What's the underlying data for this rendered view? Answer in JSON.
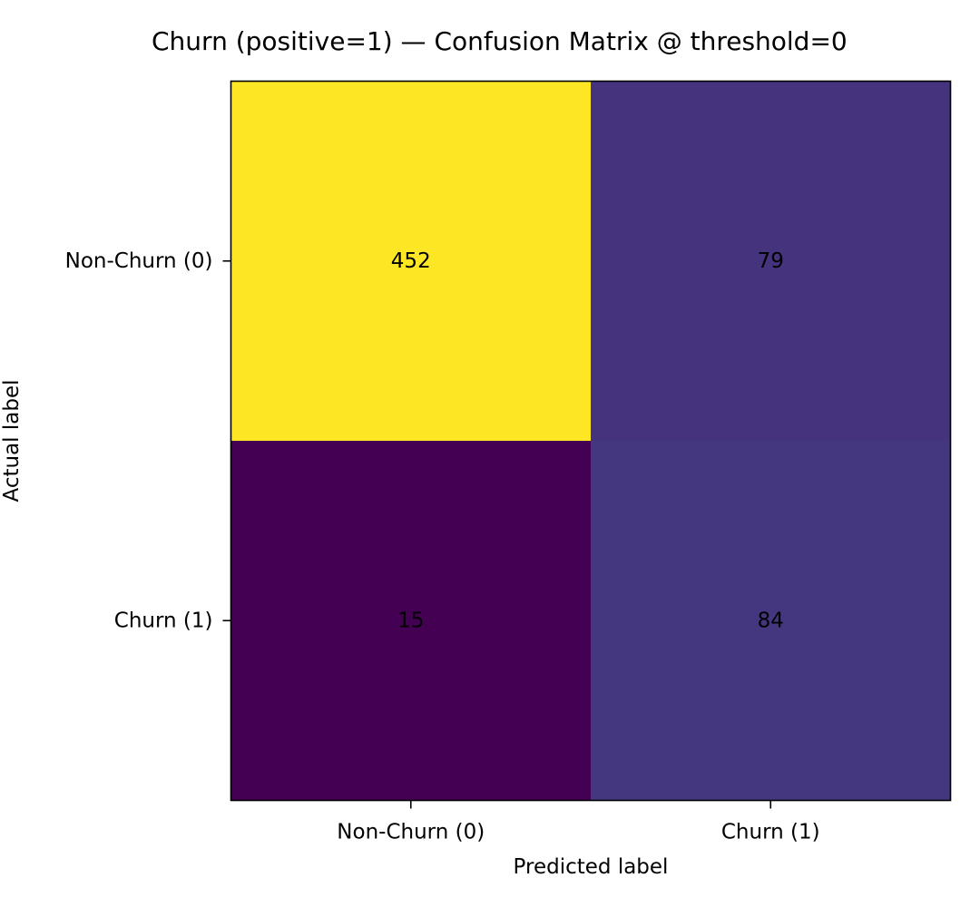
{
  "chart_data": {
    "type": "heatmap",
    "title": "Churn (positive=1) — Confusion Matrix @ threshold=0",
    "xlabel": "Predicted label",
    "ylabel": "Actual label",
    "x_categories": [
      "Non-Churn (0)",
      "Churn (1)"
    ],
    "y_categories": [
      "Non-Churn (0)",
      "Churn (1)"
    ],
    "values": [
      [
        452,
        79
      ],
      [
        15,
        84
      ]
    ],
    "colormap": "viridis",
    "colors": {
      "max": "#fde725",
      "min": "#440154",
      "text": "#000000",
      "frame": "#000000"
    },
    "grid": false,
    "legend": "none"
  }
}
